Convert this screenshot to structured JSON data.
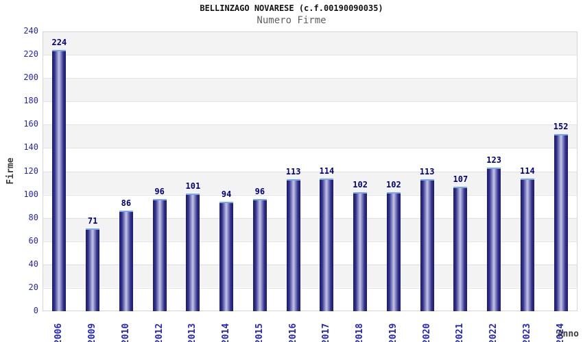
{
  "header": {
    "title": "BELLINZAGO NOVARESE (c.f.00190090035)",
    "subtitle": "Numero Firme"
  },
  "chart_data": {
    "type": "bar",
    "title": "BELLINZAGO NOVARESE (c.f.00190090035)",
    "subtitle": "Numero Firme",
    "xlabel": "Anno",
    "ylabel": "Firme",
    "categories": [
      "2006",
      "2009",
      "2010",
      "2012",
      "2013",
      "2014",
      "2015",
      "2016",
      "2017",
      "2018",
      "2019",
      "2020",
      "2021",
      "2022",
      "2023",
      "2024"
    ],
    "values": [
      224,
      71,
      86,
      96,
      101,
      94,
      96,
      113,
      114,
      102,
      102,
      113,
      107,
      123,
      114,
      152
    ],
    "ylim": [
      0,
      240
    ],
    "ytick_step": 20,
    "grid": true,
    "legend": "none",
    "colors": {
      "bar_dark": "#181874",
      "bar_light": "#c7c7e8",
      "bar_top_border": "#76a8ef",
      "tick_label": "#2323cc",
      "value_label": "#00007d",
      "axis_title": "#3c3c3c",
      "band_gray": "#f3f3f3",
      "band_white": "#ffffff",
      "plot_border": "#d5d5d5",
      "title_color": "#111111",
      "subtitle_color": "#606060"
    }
  }
}
